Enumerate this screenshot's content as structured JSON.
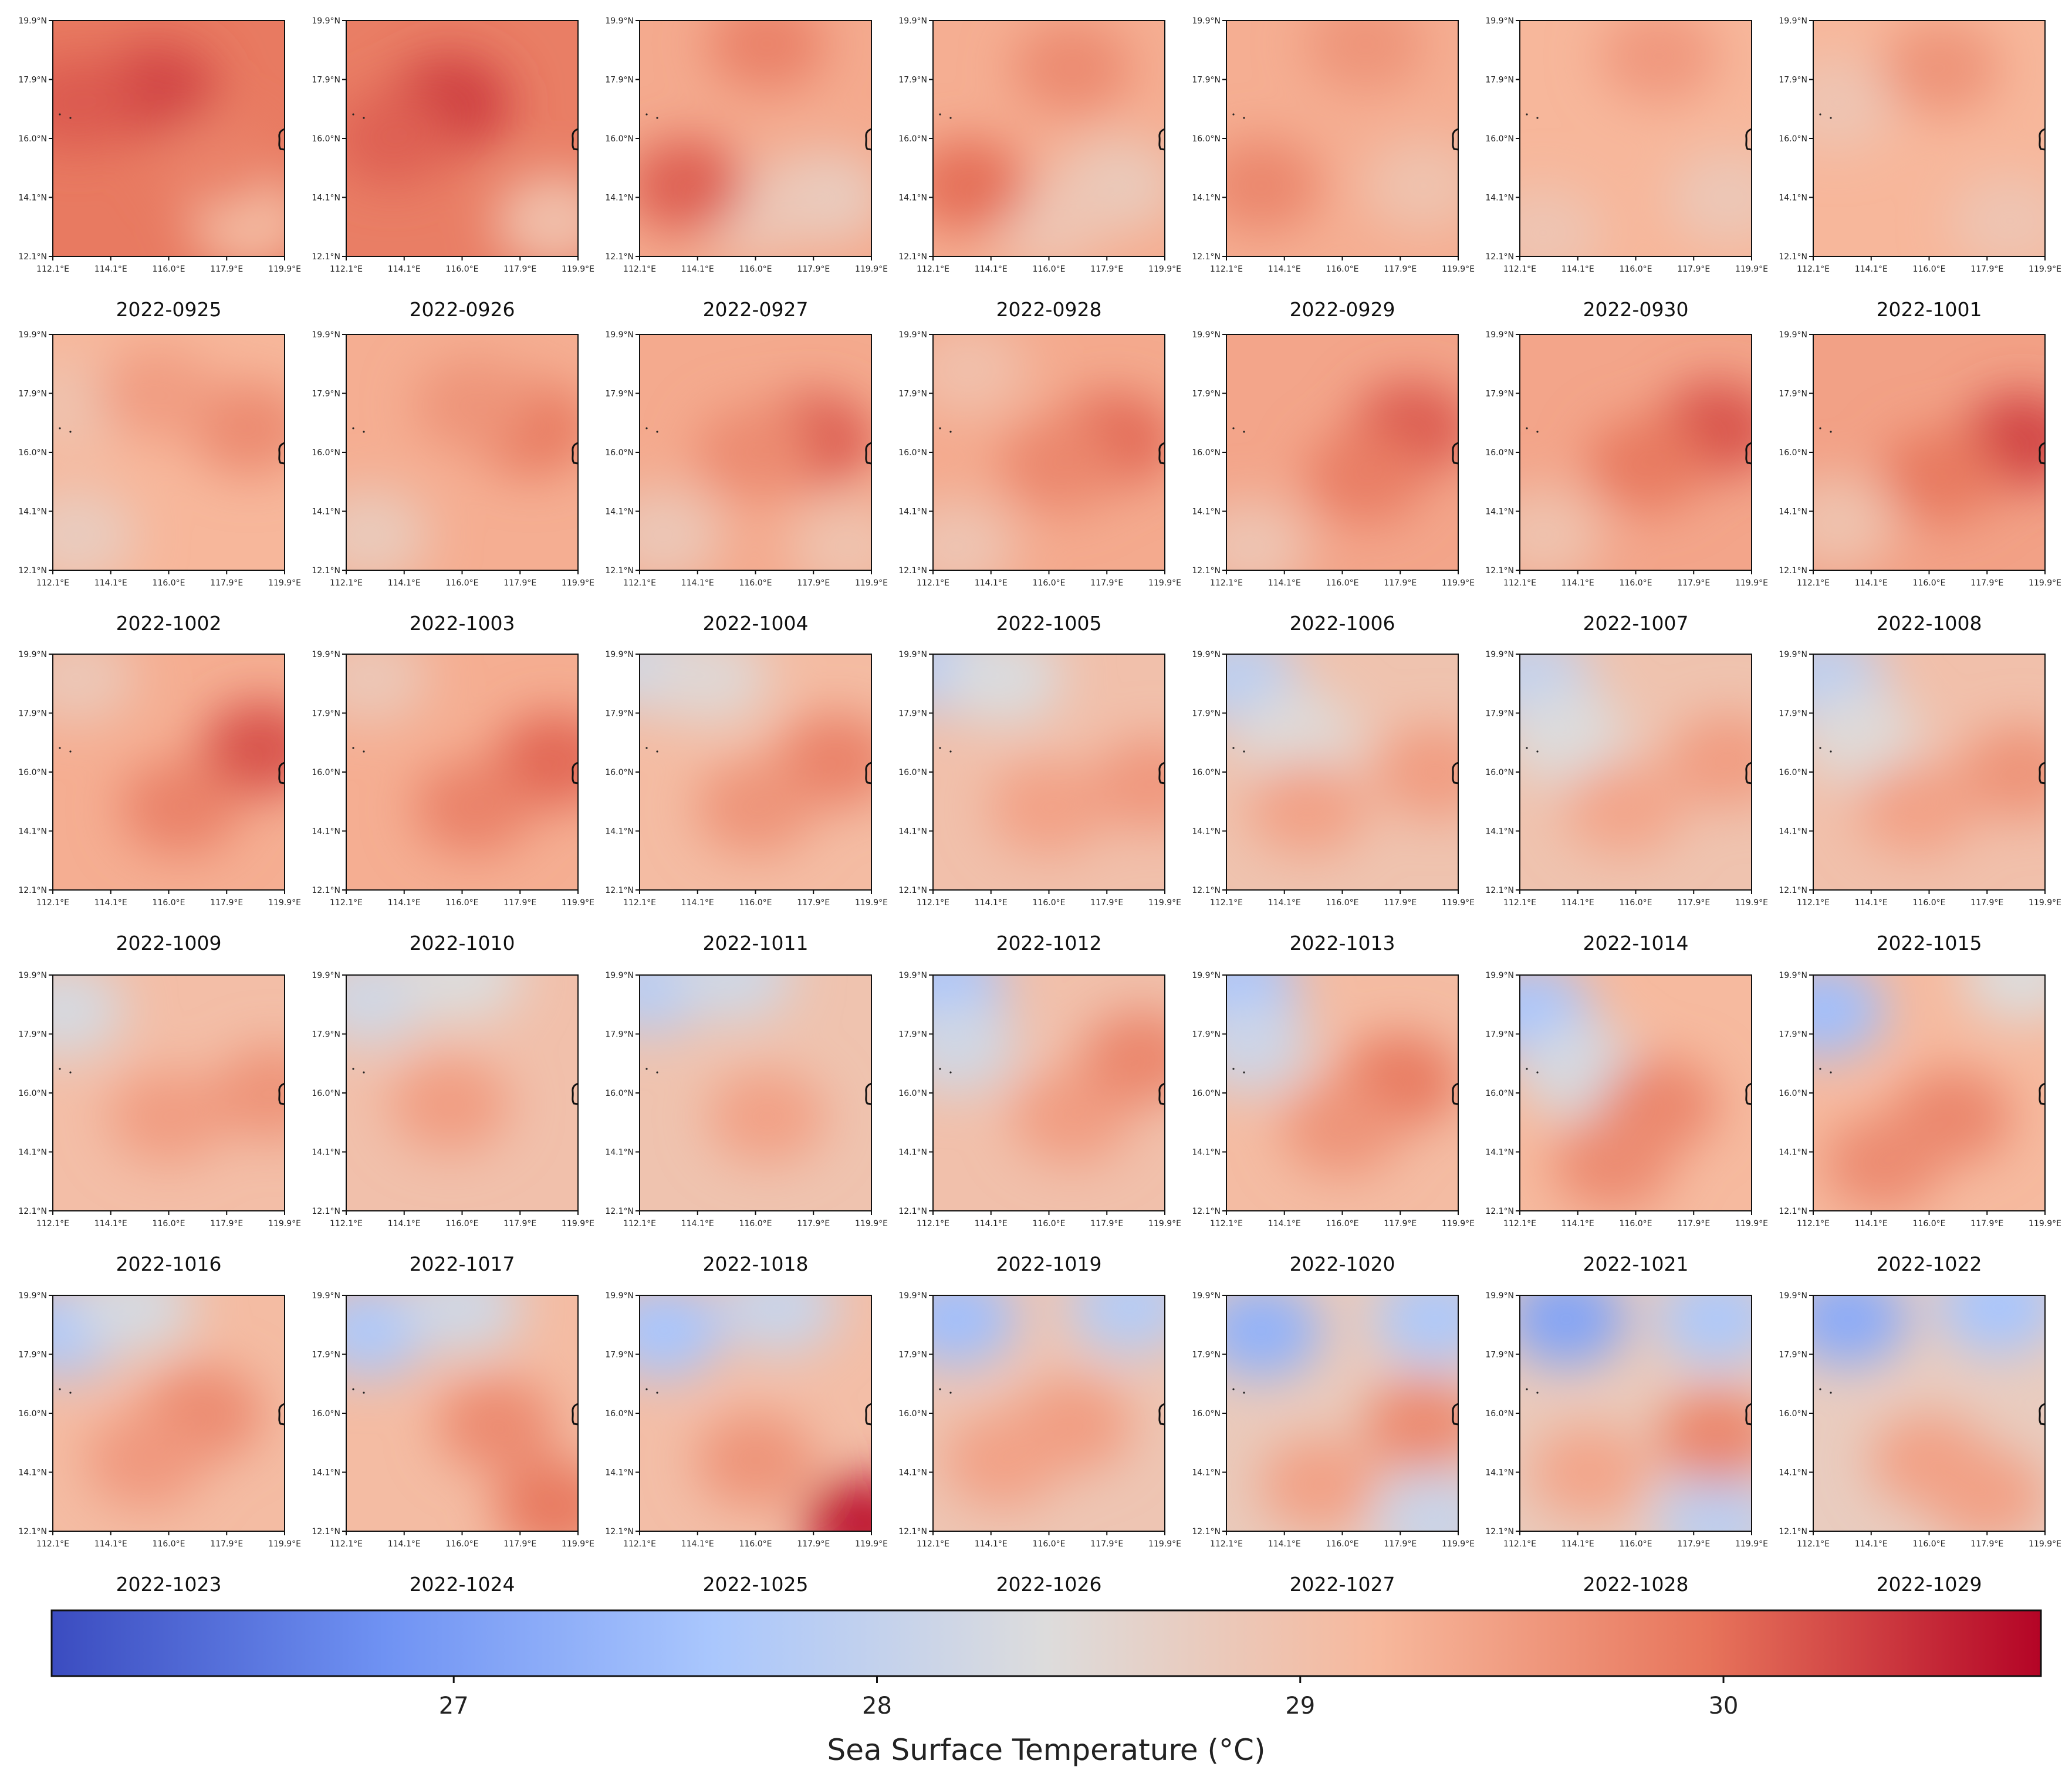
{
  "chart_data": {
    "type": "heatmap",
    "title": "",
    "colorbar": {
      "label": "Sea Surface Temperature (°C)",
      "ticks": [
        "27",
        "28",
        "29",
        "30"
      ],
      "tick_values": [
        27,
        28,
        29,
        30
      ],
      "range": [
        26.05,
        30.75
      ],
      "colormap": "coolwarm",
      "colors": [
        "#3b4cc0",
        "#6f92f3",
        "#aac7fd",
        "#dddcdc",
        "#f7b89c",
        "#e7745b",
        "#b40426"
      ]
    },
    "map_axes": {
      "x_ticks": [
        "112.1°E",
        "114.1°E",
        "116.0°E",
        "117.9°E",
        "119.9°E"
      ],
      "y_ticks": [
        "19.9°N",
        "17.9°N",
        "16.0°N",
        "14.1°N",
        "12.1°N"
      ]
    },
    "panels": [
      {
        "label": "2022-0925",
        "mean": 29.9,
        "warm": [
          [
            0.45,
            0.3,
            30.3
          ],
          [
            0.1,
            0.35,
            30.15
          ],
          [
            0.7,
            0.6,
            29.8
          ]
        ],
        "cool": [
          [
            0.85,
            0.85,
            29.1
          ]
        ]
      },
      {
        "label": "2022-0926",
        "mean": 29.85,
        "warm": [
          [
            0.45,
            0.35,
            30.35
          ],
          [
            0.2,
            0.5,
            30.1
          ]
        ],
        "cool": [
          [
            0.9,
            0.85,
            29.0
          ]
        ]
      },
      {
        "label": "2022-0927",
        "mean": 29.35,
        "warm": [
          [
            0.2,
            0.7,
            30.1
          ],
          [
            0.55,
            0.1,
            29.8
          ]
        ],
        "cool": [
          [
            0.8,
            0.75,
            28.75
          ],
          [
            0.5,
            0.8,
            28.85
          ]
        ]
      },
      {
        "label": "2022-0928",
        "mean": 29.3,
        "warm": [
          [
            0.15,
            0.7,
            30.0
          ],
          [
            0.6,
            0.2,
            29.7
          ]
        ],
        "cool": [
          [
            0.8,
            0.7,
            28.8
          ],
          [
            0.5,
            0.85,
            28.9
          ]
        ]
      },
      {
        "label": "2022-0929",
        "mean": 29.3,
        "warm": [
          [
            0.15,
            0.7,
            29.75
          ],
          [
            0.6,
            0.1,
            29.6
          ]
        ],
        "cool": [
          [
            0.85,
            0.7,
            28.95
          ]
        ]
      },
      {
        "label": "2022-0930",
        "mean": 29.2,
        "warm": [
          [
            0.6,
            0.15,
            29.55
          ]
        ],
        "cool": [
          [
            0.9,
            0.75,
            28.85
          ],
          [
            0.1,
            0.9,
            28.9
          ]
        ]
      },
      {
        "label": "2022-1001",
        "mean": 29.2,
        "warm": [
          [
            0.55,
            0.2,
            29.6
          ]
        ],
        "cool": [
          [
            0.1,
            0.35,
            28.9
          ],
          [
            0.85,
            0.85,
            28.9
          ]
        ]
      },
      {
        "label": "2022-1002",
        "mean": 29.2,
        "warm": [
          [
            0.85,
            0.4,
            29.7
          ],
          [
            0.45,
            0.25,
            29.5
          ]
        ],
        "cool": [
          [
            0.1,
            0.85,
            28.75
          ],
          [
            0.1,
            0.3,
            28.95
          ]
        ]
      },
      {
        "label": "2022-1003",
        "mean": 29.3,
        "warm": [
          [
            0.8,
            0.4,
            29.9
          ],
          [
            0.55,
            0.3,
            29.6
          ]
        ],
        "cool": [
          [
            0.1,
            0.85,
            28.8
          ]
        ]
      },
      {
        "label": "2022-1004",
        "mean": 29.35,
        "warm": [
          [
            0.75,
            0.45,
            30.15
          ],
          [
            0.5,
            0.5,
            29.7
          ]
        ],
        "cool": [
          [
            0.1,
            0.85,
            28.85
          ],
          [
            0.9,
            0.9,
            28.95
          ]
        ]
      },
      {
        "label": "2022-1005",
        "mean": 29.35,
        "warm": [
          [
            0.78,
            0.45,
            30.05
          ],
          [
            0.55,
            0.55,
            29.75
          ]
        ],
        "cool": [
          [
            0.1,
            0.9,
            28.9
          ],
          [
            0.15,
            0.15,
            29.0
          ]
        ]
      },
      {
        "label": "2022-1006",
        "mean": 29.4,
        "warm": [
          [
            0.8,
            0.4,
            30.15
          ],
          [
            0.6,
            0.6,
            29.85
          ]
        ],
        "cool": [
          [
            0.1,
            0.9,
            28.9
          ]
        ]
      },
      {
        "label": "2022-1007",
        "mean": 29.4,
        "warm": [
          [
            0.85,
            0.4,
            30.2
          ],
          [
            0.55,
            0.55,
            29.9
          ]
        ],
        "cool": [
          [
            0.1,
            0.85,
            28.95
          ]
        ]
      },
      {
        "label": "2022-1008",
        "mean": 29.45,
        "warm": [
          [
            0.9,
            0.45,
            30.3
          ],
          [
            0.55,
            0.6,
            29.9
          ]
        ],
        "cool": [
          [
            0.1,
            0.8,
            28.95
          ]
        ]
      },
      {
        "label": "2022-1009",
        "mean": 29.3,
        "warm": [
          [
            0.9,
            0.4,
            30.2
          ],
          [
            0.55,
            0.65,
            29.8
          ]
        ],
        "cool": [
          [
            0.1,
            0.1,
            28.85
          ]
        ]
      },
      {
        "label": "2022-1010",
        "mean": 29.3,
        "warm": [
          [
            0.9,
            0.45,
            30.05
          ],
          [
            0.55,
            0.65,
            29.8
          ]
        ],
        "cool": [
          [
            0.1,
            0.1,
            28.85
          ]
        ]
      },
      {
        "label": "2022-1011",
        "mean": 29.1,
        "warm": [
          [
            0.85,
            0.45,
            29.8
          ],
          [
            0.5,
            0.65,
            29.6
          ]
        ],
        "cool": [
          [
            0.05,
            0.05,
            28.2
          ],
          [
            0.3,
            0.1,
            28.5
          ]
        ]
      },
      {
        "label": "2022-1012",
        "mean": 29.0,
        "warm": [
          [
            0.5,
            0.65,
            29.45
          ],
          [
            0.95,
            0.55,
            29.55
          ]
        ],
        "cool": [
          [
            0.05,
            0.05,
            27.85
          ],
          [
            0.3,
            0.1,
            28.35
          ]
        ]
      },
      {
        "label": "2022-1013",
        "mean": 28.95,
        "warm": [
          [
            0.35,
            0.65,
            29.45
          ],
          [
            0.9,
            0.5,
            29.5
          ]
        ],
        "cool": [
          [
            0.05,
            0.1,
            27.9
          ],
          [
            0.3,
            0.35,
            28.45
          ]
        ]
      },
      {
        "label": "2022-1014",
        "mean": 28.95,
        "warm": [
          [
            0.45,
            0.65,
            29.4
          ],
          [
            0.9,
            0.45,
            29.5
          ]
        ],
        "cool": [
          [
            0.05,
            0.1,
            28.0
          ],
          [
            0.2,
            0.35,
            28.4
          ]
        ]
      },
      {
        "label": "2022-1015",
        "mean": 29.0,
        "warm": [
          [
            0.45,
            0.65,
            29.45
          ],
          [
            0.9,
            0.5,
            29.6
          ]
        ],
        "cool": [
          [
            0.05,
            0.1,
            27.9
          ],
          [
            0.2,
            0.35,
            28.45
          ]
        ]
      },
      {
        "label": "2022-1016",
        "mean": 29.05,
        "warm": [
          [
            0.5,
            0.6,
            29.5
          ],
          [
            0.95,
            0.5,
            29.6
          ]
        ],
        "cool": [
          [
            0.05,
            0.15,
            28.3
          ]
        ]
      },
      {
        "label": "2022-1017",
        "mean": 29.0,
        "warm": [
          [
            0.45,
            0.55,
            29.5
          ]
        ],
        "cool": [
          [
            0.1,
            0.1,
            28.2
          ],
          [
            0.5,
            0.0,
            28.4
          ]
        ]
      },
      {
        "label": "2022-1018",
        "mean": 28.95,
        "warm": [
          [
            0.55,
            0.6,
            29.45
          ]
        ],
        "cool": [
          [
            0.05,
            0.05,
            27.85
          ],
          [
            0.4,
            0.0,
            28.2
          ]
        ]
      },
      {
        "label": "2022-1019",
        "mean": 29.0,
        "warm": [
          [
            0.6,
            0.6,
            29.5
          ],
          [
            0.9,
            0.35,
            29.75
          ]
        ],
        "cool": [
          [
            0.05,
            0.05,
            27.6
          ],
          [
            0.1,
            0.3,
            28.2
          ]
        ]
      },
      {
        "label": "2022-1020",
        "mean": 29.1,
        "warm": [
          [
            0.75,
            0.45,
            29.9
          ],
          [
            0.5,
            0.65,
            29.6
          ]
        ],
        "cool": [
          [
            0.05,
            0.05,
            27.6
          ],
          [
            0.1,
            0.3,
            28.15
          ]
        ]
      },
      {
        "label": "2022-1021",
        "mean": 29.15,
        "warm": [
          [
            0.6,
            0.55,
            29.75
          ],
          [
            0.4,
            0.8,
            29.7
          ]
        ],
        "cool": [
          [
            0.05,
            0.15,
            27.6
          ],
          [
            0.25,
            0.4,
            28.3
          ]
        ]
      },
      {
        "label": "2022-1022",
        "mean": 29.15,
        "warm": [
          [
            0.6,
            0.6,
            29.75
          ],
          [
            0.3,
            0.8,
            29.7
          ]
        ],
        "cool": [
          [
            0.05,
            0.15,
            27.5
          ],
          [
            0.9,
            0.0,
            28.4
          ]
        ]
      },
      {
        "label": "2022-1023",
        "mean": 29.1,
        "warm": [
          [
            0.65,
            0.5,
            29.7
          ],
          [
            0.4,
            0.7,
            29.55
          ]
        ],
        "cool": [
          [
            0.05,
            0.15,
            27.7
          ],
          [
            0.35,
            0.05,
            28.3
          ]
        ]
      },
      {
        "label": "2022-1024",
        "mean": 29.1,
        "warm": [
          [
            0.65,
            0.55,
            29.7
          ],
          [
            0.9,
            0.9,
            29.9
          ]
        ],
        "cool": [
          [
            0.1,
            0.15,
            27.7
          ],
          [
            0.5,
            0.05,
            28.2
          ]
        ]
      },
      {
        "label": "2022-1025",
        "mean": 29.05,
        "warm": [
          [
            0.5,
            0.7,
            29.6
          ],
          [
            0.97,
            0.97,
            30.6
          ]
        ],
        "cool": [
          [
            0.1,
            0.15,
            27.6
          ],
          [
            0.6,
            0.05,
            28.1
          ]
        ]
      },
      {
        "label": "2022-1026",
        "mean": 28.9,
        "warm": [
          [
            0.6,
            0.55,
            29.5
          ],
          [
            0.3,
            0.7,
            29.45
          ]
        ],
        "cool": [
          [
            0.1,
            0.1,
            27.5
          ],
          [
            0.85,
            0.05,
            27.8
          ]
        ]
      },
      {
        "label": "2022-1027",
        "mean": 28.8,
        "warm": [
          [
            0.85,
            0.55,
            29.7
          ],
          [
            0.4,
            0.8,
            29.45
          ]
        ],
        "cool": [
          [
            0.15,
            0.15,
            27.3
          ],
          [
            0.9,
            0.1,
            27.7
          ],
          [
            0.9,
            0.95,
            28.1
          ]
        ]
      },
      {
        "label": "2022-1028",
        "mean": 28.8,
        "warm": [
          [
            0.85,
            0.6,
            29.75
          ],
          [
            0.3,
            0.75,
            29.4
          ]
        ],
        "cool": [
          [
            0.2,
            0.1,
            27.1
          ],
          [
            0.85,
            0.1,
            27.7
          ],
          [
            0.85,
            0.95,
            27.9
          ]
        ]
      },
      {
        "label": "2022-1029",
        "mean": 28.75,
        "warm": [
          [
            0.5,
            0.7,
            29.45
          ],
          [
            0.75,
            0.85,
            29.45
          ]
        ],
        "cool": [
          [
            0.15,
            0.1,
            27.2
          ],
          [
            0.8,
            0.05,
            27.6
          ]
        ]
      }
    ]
  }
}
